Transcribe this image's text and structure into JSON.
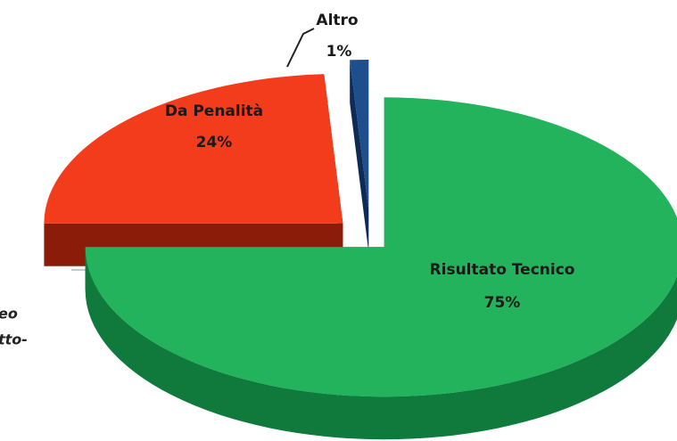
{
  "chart_data": {
    "type": "pie3d",
    "categories": [
      "Risultato Tecnico",
      "Da Penalità",
      "Altro"
    ],
    "values": [
      75,
      24,
      1
    ],
    "value_labels": [
      "75%",
      "24%",
      "1%"
    ],
    "colors": [
      "#22b35c",
      "#f23c1c",
      "#1f4e8c"
    ],
    "side_colors": [
      "#0f7a3c",
      "#8c1c0a",
      "#0e2b55"
    ],
    "annotations": [
      "eo",
      "tto-"
    ]
  }
}
